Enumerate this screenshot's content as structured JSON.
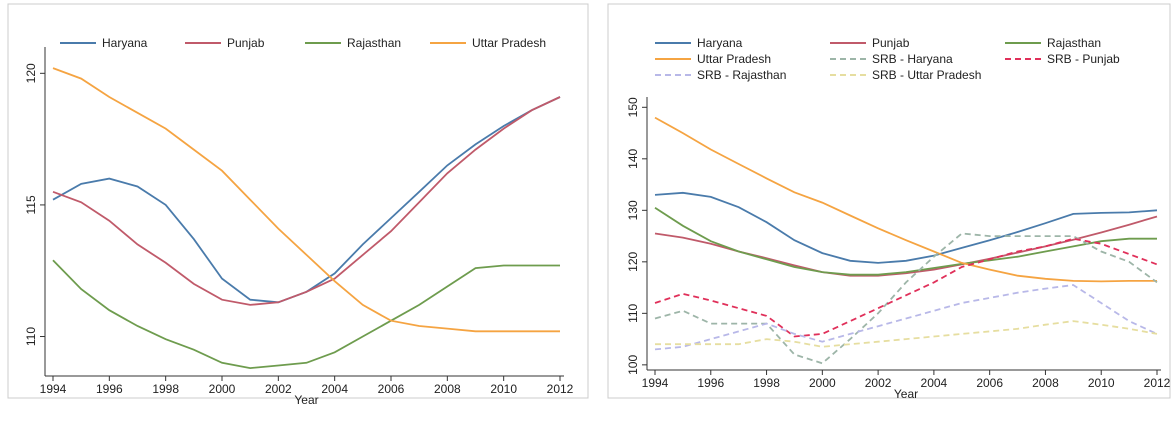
{
  "chart_data": [
    {
      "type": "line",
      "x_label": "Year",
      "x": [
        1994,
        1995,
        1996,
        1997,
        1998,
        1999,
        2000,
        2001,
        2002,
        2003,
        2004,
        2005,
        2006,
        2007,
        2008,
        2009,
        2010,
        2011,
        2012
      ],
      "xlim": [
        1994,
        2012
      ],
      "xticks": [
        1994,
        1996,
        1998,
        2000,
        2002,
        2004,
        2006,
        2008,
        2010,
        2012
      ],
      "ylim": [
        108.5,
        121
      ],
      "yticks": [
        110,
        115,
        120
      ],
      "legend_columns": 4,
      "series": [
        {
          "name": "Haryana",
          "color": "#4a7bab",
          "dash": false,
          "values": [
            115.2,
            115.8,
            116.0,
            115.7,
            115.0,
            113.7,
            112.2,
            111.4,
            111.3,
            111.7,
            112.4,
            113.5,
            114.5,
            115.5,
            116.5,
            117.3,
            118.0,
            118.6,
            119.1
          ]
        },
        {
          "name": "Punjab",
          "color": "#c05a6a",
          "dash": false,
          "values": [
            115.5,
            115.1,
            114.4,
            113.5,
            112.8,
            112.0,
            111.4,
            111.2,
            111.3,
            111.7,
            112.2,
            113.1,
            114.0,
            115.1,
            116.2,
            117.1,
            117.9,
            118.6,
            119.1
          ]
        },
        {
          "name": "Rajasthan",
          "color": "#6e9c4e",
          "dash": false,
          "values": [
            112.9,
            111.8,
            111.0,
            110.4,
            109.9,
            109.5,
            109.0,
            108.8,
            108.9,
            109.0,
            109.4,
            110.0,
            110.6,
            111.2,
            111.9,
            112.6,
            112.7,
            112.7,
            112.7
          ]
        },
        {
          "name": "Uttar Pradesh",
          "color": "#f5a442",
          "dash": false,
          "values": [
            120.2,
            119.8,
            119.1,
            118.5,
            117.9,
            117.1,
            116.3,
            115.2,
            114.1,
            113.1,
            112.1,
            111.2,
            110.6,
            110.4,
            110.3,
            110.2,
            110.2,
            110.2,
            110.2
          ]
        }
      ]
    },
    {
      "type": "line",
      "x_label": "Year",
      "x": [
        1994,
        1995,
        1996,
        1997,
        1998,
        1999,
        2000,
        2001,
        2002,
        2003,
        2004,
        2005,
        2006,
        2007,
        2008,
        2009,
        2010,
        2011,
        2012
      ],
      "xlim": [
        1994,
        2012
      ],
      "xticks": [
        1994,
        1996,
        1998,
        2000,
        2002,
        2004,
        2006,
        2008,
        2010,
        2012
      ],
      "ylim": [
        99,
        152
      ],
      "yticks": [
        100,
        110,
        120,
        130,
        140,
        150
      ],
      "legend_columns": 3,
      "series": [
        {
          "name": "Haryana",
          "color": "#4a7bab",
          "dash": false,
          "values": [
            133,
            133.4,
            132.6,
            130.6,
            127.7,
            124.2,
            121.7,
            120.2,
            119.8,
            120.2,
            121.2,
            122.7,
            124.2,
            125.8,
            127.5,
            129.3,
            129.5,
            129.6,
            130
          ]
        },
        {
          "name": "Punjab",
          "color": "#c05a6a",
          "dash": false,
          "values": [
            125.5,
            124.7,
            123.5,
            122,
            120.7,
            119.3,
            118,
            117.3,
            117.3,
            117.8,
            118.5,
            119.5,
            120.6,
            121.8,
            123,
            124.3,
            125.7,
            127.2,
            128.8
          ]
        },
        {
          "name": "Rajasthan",
          "color": "#6e9c4e",
          "dash": false,
          "values": [
            130.5,
            127,
            124,
            122,
            120.5,
            119,
            118,
            117.5,
            117.5,
            118,
            118.8,
            119.6,
            120.3,
            121,
            122,
            123,
            124,
            124.5,
            124.5
          ]
        },
        {
          "name": "Uttar Pradesh",
          "color": "#f5a442",
          "dash": false,
          "values": [
            148,
            145,
            141.8,
            139,
            136.2,
            133.5,
            131.5,
            129,
            126.5,
            124.2,
            122,
            119.8,
            118.5,
            117.3,
            116.7,
            116.3,
            116.2,
            116.3,
            116.3
          ]
        },
        {
          "name": "SRB - Haryana",
          "color": "#9db5a8",
          "dash": true,
          "values": [
            109,
            110.5,
            108,
            108,
            108,
            102,
            100.3,
            105,
            110,
            116,
            121,
            125.5,
            125,
            125,
            125,
            125,
            122,
            120,
            116
          ]
        },
        {
          "name": "SRB - Punjab",
          "color": "#e0305a",
          "dash": true,
          "values": [
            112,
            113.8,
            112.5,
            111,
            109.5,
            105.5,
            106,
            108.5,
            111,
            113.5,
            116,
            119,
            120.5,
            122,
            123,
            124.5,
            123.5,
            121.5,
            119.5
          ]
        },
        {
          "name": "SRB - Rajasthan",
          "color": "#b8b8e8",
          "dash": true,
          "values": [
            103,
            103.5,
            105,
            106.5,
            108,
            106,
            104.5,
            106,
            107.5,
            109,
            110.5,
            112,
            113,
            114,
            114.8,
            115.5,
            112,
            108.5,
            106
          ]
        },
        {
          "name": "SRB - Uttar Pradesh",
          "color": "#e6dea0",
          "dash": true,
          "values": [
            104,
            104,
            104,
            104,
            105,
            104.5,
            103.5,
            104,
            104.5,
            105,
            105.5,
            106,
            106.5,
            107,
            107.8,
            108.5,
            107.8,
            107,
            106
          ]
        }
      ]
    }
  ]
}
